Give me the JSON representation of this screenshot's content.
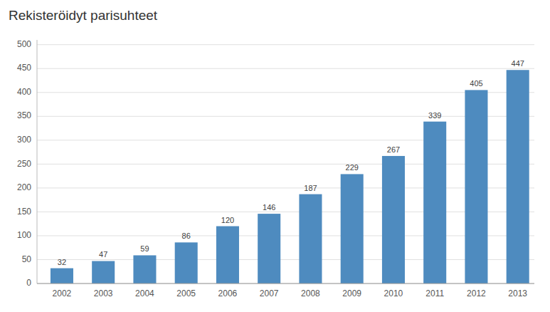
{
  "chart_data": {
    "type": "bar",
    "title": "Rekisteröidyt parisuhteet",
    "categories": [
      "2002",
      "2003",
      "2004",
      "2005",
      "2006",
      "2007",
      "2008",
      "2009",
      "2010",
      "2011",
      "2012",
      "2013"
    ],
    "values": [
      32,
      47,
      59,
      86,
      120,
      146,
      187,
      229,
      267,
      339,
      405,
      447
    ],
    "color": "#4e8bbf",
    "ylim": [
      0,
      510
    ],
    "yticks": [
      0,
      50,
      100,
      150,
      200,
      250,
      300,
      350,
      400,
      450,
      500
    ],
    "grid": true,
    "data_labels": true
  }
}
